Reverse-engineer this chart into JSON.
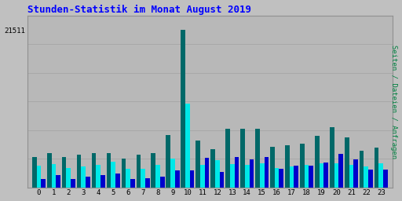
{
  "title": "Stunden-Statistik im Monat August 2019",
  "ylabel_right": "Seiten / Dateien / Anfragen",
  "ytick_label": "21511",
  "hours": [
    0,
    1,
    2,
    3,
    4,
    5,
    6,
    7,
    8,
    9,
    10,
    11,
    12,
    13,
    14,
    15,
    16,
    17,
    18,
    19,
    20,
    21,
    22,
    23
  ],
  "green_values": [
    4200,
    4700,
    4100,
    4500,
    4700,
    4700,
    3900,
    4500,
    4700,
    7200,
    21511,
    6400,
    5200,
    8000,
    8000,
    8000,
    5500,
    5800,
    6000,
    7000,
    8200,
    6800,
    5000,
    5400
  ],
  "cyan_values": [
    3000,
    3200,
    2700,
    2900,
    3100,
    3500,
    2500,
    2500,
    3100,
    3900,
    11500,
    3100,
    3700,
    3200,
    3100,
    3300,
    2700,
    2900,
    3100,
    3300,
    3300,
    3100,
    2900,
    3300
  ],
  "blue_values": [
    1100,
    1700,
    1100,
    1500,
    1700,
    1900,
    1100,
    1300,
    1500,
    2300,
    2300,
    4000,
    2100,
    4200,
    3800,
    4200,
    2500,
    3000,
    3000,
    3400,
    4600,
    3800,
    2400,
    2400
  ],
  "color_green": "#006868",
  "color_cyan": "#00e8e8",
  "color_blue": "#0000cc",
  "bg_color": "#c0c0c0",
  "plot_bg_color": "#b8b8b8",
  "title_color": "#0000ff",
  "ylabel_color": "#008040",
  "bar_width": 0.3,
  "ylim_max": 23500,
  "grid_color": "#a8a8a8",
  "n_gridlines": 6
}
